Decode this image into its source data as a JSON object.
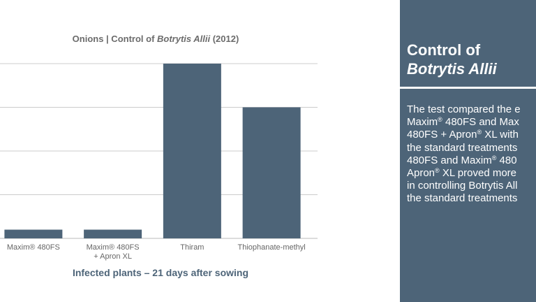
{
  "chart_data": {
    "type": "bar",
    "title_prefix": "Onions | Control of ",
    "title_italic": "Botrytis Allii",
    "title_suffix": " (2012)",
    "categories": [
      [
        "Maxim® 480FS"
      ],
      [
        "Maxim® 480FS",
        "+ Apron XL"
      ],
      [
        "Thiram"
      ],
      [
        "Thiophanate-methyl"
      ]
    ],
    "values": [
      2,
      2,
      40,
      30
    ],
    "ylim": [
      0,
      40
    ],
    "yticks": [
      0,
      10,
      20,
      30,
      40
    ],
    "grid": true,
    "xlabel": "Infected plants – 21 days after sowing",
    "bar_color": "#4d6478",
    "grid_color": "#cccccc"
  },
  "panel": {
    "heading_line1": "Control of",
    "heading_line2": "Botrytis Allii",
    "body_lines": [
      "The test compared the e",
      "Maxim® 480FS and Max",
      "480FS + Apron® XL with",
      "the standard treatments",
      "480FS and Maxim® 480",
      "Apron® XL proved more",
      "in controlling Botrytis All",
      "the standard treatments"
    ],
    "background": "#4d6478"
  }
}
